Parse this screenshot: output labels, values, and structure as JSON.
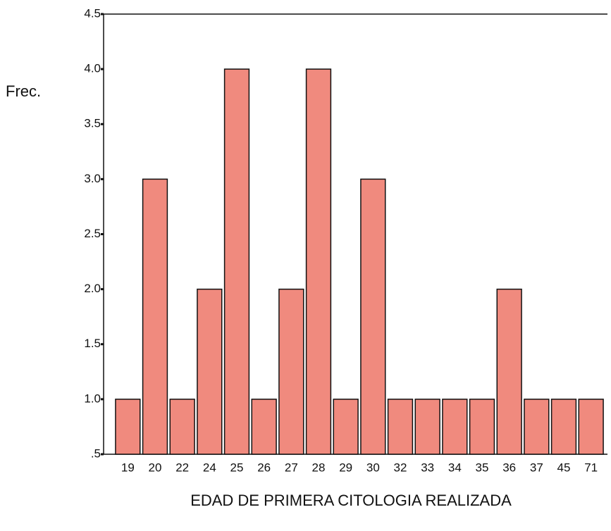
{
  "chart_data": {
    "type": "bar",
    "y_label": "Frec.",
    "x_label": "EDAD DE PRIMERA CITOLOGIA REALIZADA",
    "categories": [
      "19",
      "20",
      "22",
      "24",
      "25",
      "26",
      "27",
      "28",
      "29",
      "30",
      "32",
      "33",
      "34",
      "35",
      "36",
      "37",
      "45",
      "71"
    ],
    "values": [
      1,
      3,
      1,
      2,
      4,
      1,
      2,
      4,
      1,
      3,
      1,
      1,
      1,
      1,
      2,
      1,
      1,
      1
    ],
    "color": "#f08a7e",
    "ylim": [
      0.5,
      4.5
    ],
    "yticks": [
      {
        "value": 0.5,
        "label": ".5"
      },
      {
        "value": 1,
        "label": "1.0"
      },
      1.5,
      {
        "value": 2,
        "label": "2.0"
      },
      2.5,
      {
        "value": 3,
        "label": "3.0"
      },
      3.5,
      {
        "value": 4,
        "label": "4.0"
      },
      4.5
    ]
  }
}
